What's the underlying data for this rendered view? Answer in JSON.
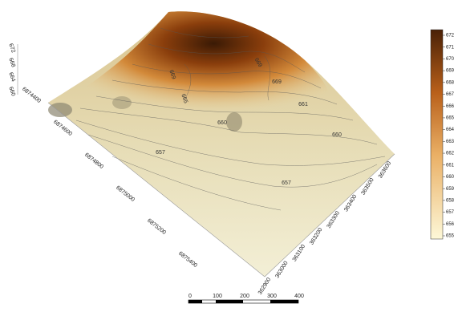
{
  "z_axis": {
    "labels": [
      672,
      668,
      664,
      660
    ]
  },
  "y_axis": {
    "labels": [
      6874400,
      6874600,
      6874800,
      6875000,
      6875200,
      6875400
    ]
  },
  "x_axis": {
    "labels": [
      362900,
      363000,
      363100,
      363200,
      363300,
      363400,
      363500,
      363600
    ]
  },
  "contour_labels": [
    669,
    665,
    669,
    669,
    661,
    660,
    660,
    657,
    657
  ],
  "legend": {
    "labels": [
      672,
      671,
      670,
      669,
      668,
      667,
      666,
      665,
      664,
      663,
      662,
      661,
      660,
      659,
      658,
      657,
      656,
      655
    ]
  },
  "scale_bar": {
    "labels": [
      0,
      100,
      200,
      300,
      400
    ]
  }
}
